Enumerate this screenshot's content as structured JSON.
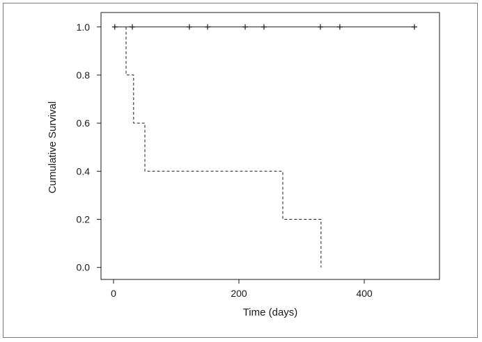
{
  "chart_data": {
    "type": "line",
    "title": "",
    "xlabel": "Time (days)",
    "ylabel": "Cumulative Survival",
    "xlim": [
      -20,
      520
    ],
    "ylim": [
      -0.05,
      1.06
    ],
    "xticks": [
      0,
      200,
      400
    ],
    "xtick_labels": [
      "0",
      "200",
      "400"
    ],
    "yticks": [
      0.0,
      0.2,
      0.4,
      0.6,
      0.8,
      1.0
    ],
    "ytick_labels": [
      "0.0",
      "0.2",
      "0.4",
      "0.6",
      "0.8",
      "1.0"
    ],
    "grid": false,
    "legend": "none",
    "series": [
      {
        "style": "solid",
        "step": [
          [
            0,
            1.0
          ],
          [
            480,
            1.0
          ]
        ],
        "censored": [
          [
            2,
            1.0
          ],
          [
            30,
            1.0
          ],
          [
            121,
            1.0
          ],
          [
            150,
            1.0
          ],
          [
            210,
            1.0
          ],
          [
            240,
            1.0
          ],
          [
            330,
            1.0
          ],
          [
            361,
            1.0
          ],
          [
            480,
            1.0
          ]
        ]
      },
      {
        "style": "dashed",
        "step": [
          [
            20,
            1.0
          ],
          [
            20,
            0.8
          ],
          [
            32,
            0.8
          ],
          [
            32,
            0.6
          ],
          [
            50,
            0.6
          ],
          [
            50,
            0.4
          ],
          [
            270,
            0.4
          ],
          [
            270,
            0.2
          ],
          [
            331,
            0.2
          ],
          [
            331,
            0.0
          ]
        ],
        "censored": []
      }
    ]
  }
}
